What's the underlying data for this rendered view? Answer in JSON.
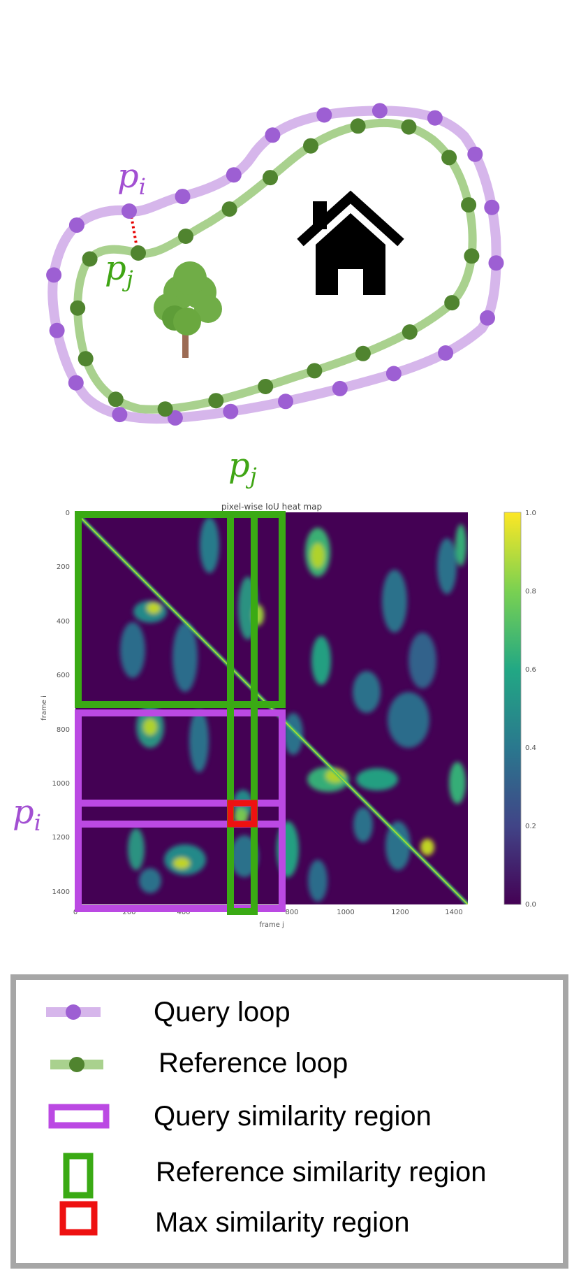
{
  "scene": {
    "query_point_label": "p",
    "query_point_subscript": "i",
    "reference_point_label": "p",
    "reference_point_subscript": "j",
    "query_color": "#9d5fd3",
    "query_line_color": "#d6b6eb",
    "reference_color": "#50842f",
    "reference_line_color": "#a9d18e",
    "correspondence_color": "#e60000",
    "icons": [
      "house-icon",
      "tree-icon"
    ]
  },
  "heatmap": {
    "title": "pixel-wise IoU heat map",
    "xlabel": "frame j",
    "ylabel": "frame i",
    "x_ticks": [
      "0",
      "200",
      "400",
      "600",
      "800",
      "1000",
      "1200",
      "1400"
    ],
    "y_ticks": [
      "0",
      "200",
      "400",
      "600",
      "800",
      "1000",
      "1200",
      "1400"
    ],
    "colorbar_ticks": [
      "0.0",
      "0.2",
      "0.4",
      "0.6",
      "0.8",
      "1.0"
    ],
    "top_label": "p",
    "top_label_subscript": "j",
    "side_label": "p",
    "side_label_subscript": "i",
    "colormap": "viridis"
  },
  "chart_data": {
    "type": "heatmap",
    "title": "pixel-wise IoU heat map",
    "xlabel": "frame j",
    "ylabel": "frame i",
    "xlim": [
      0,
      1450
    ],
    "ylim": [
      0,
      1450
    ],
    "clim": [
      0.0,
      1.0
    ],
    "regions": {
      "reference_similarity_region": {
        "x": [
          0,
          770
        ],
        "y": [
          0,
          700
        ]
      },
      "reference_similarity_strip": {
        "x": [
          570,
          660
        ],
        "y": [
          0,
          1450
        ]
      },
      "query_similarity_region": {
        "x": [
          0,
          770
        ],
        "y": [
          730,
          1450
        ]
      },
      "query_similarity_strip": {
        "x": [
          0,
          770
        ],
        "y": [
          1050,
          1130
        ]
      },
      "max_similarity_region": {
        "x": [
          570,
          660
        ],
        "y": [
          1050,
          1130
        ]
      }
    }
  },
  "legend": {
    "items": [
      {
        "label": "Query loop",
        "symbol": "query-loop"
      },
      {
        "label": "Reference loop",
        "symbol": "reference-loop"
      },
      {
        "label": "Query similarity region",
        "symbol": "query-region"
      },
      {
        "label": "Reference similarity region",
        "symbol": "reference-region"
      },
      {
        "label": "Max similarity region",
        "symbol": "max-region"
      }
    ],
    "colors": {
      "query_region": "#bb49e3",
      "reference_region": "#3aaa14",
      "max_region": "#ee1111",
      "border": "#a6a6a6"
    }
  }
}
